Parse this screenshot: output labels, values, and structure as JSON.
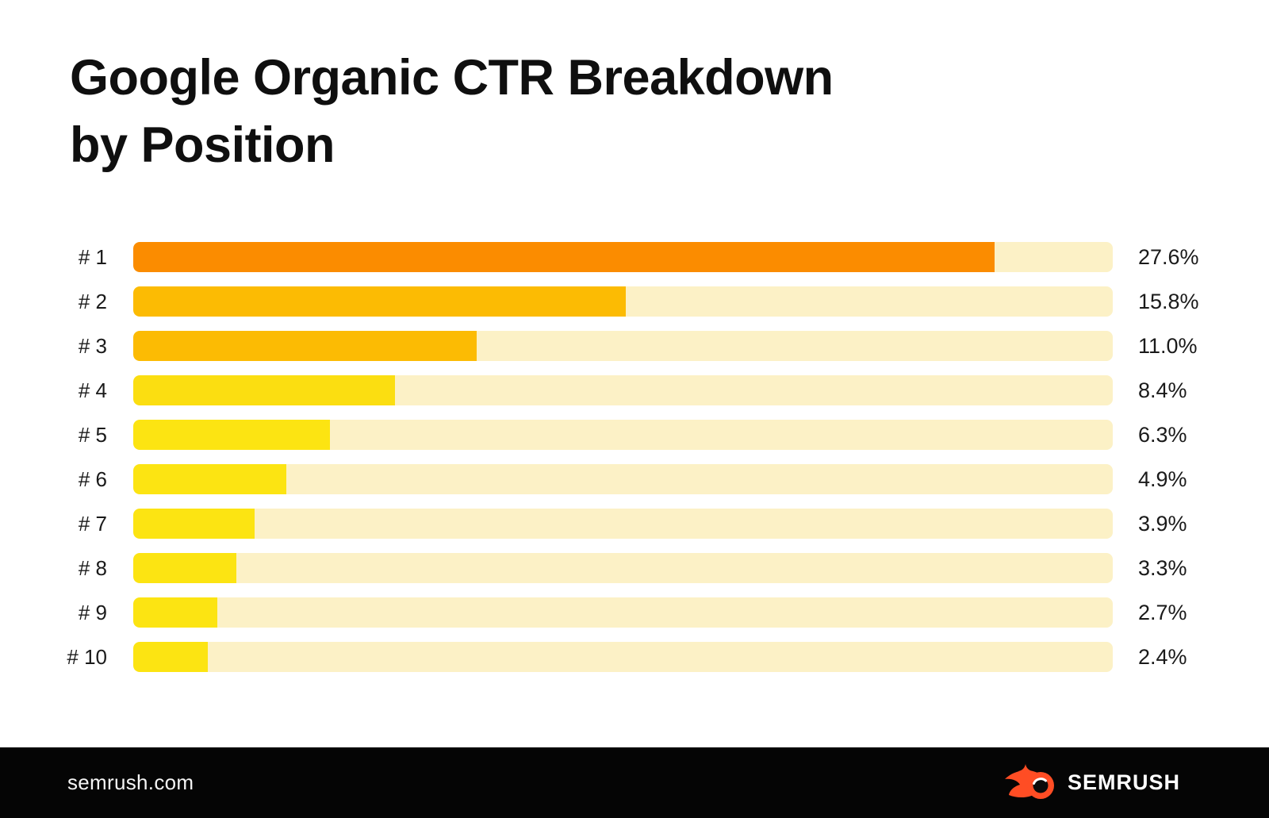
{
  "title": {
    "line1": "Google Organic CTR Breakdown",
    "line2": "by Position"
  },
  "chart_data": {
    "type": "bar",
    "orientation": "horizontal",
    "title": "Google Organic CTR Breakdown by Position",
    "categories": [
      "# 1",
      "# 2",
      "# 3",
      "# 4",
      "# 5",
      "# 6",
      "# 7",
      "# 8",
      "# 9",
      "# 10"
    ],
    "values": [
      27.6,
      15.8,
      11.0,
      8.4,
      6.3,
      4.9,
      3.9,
      3.3,
      2.7,
      2.4
    ],
    "value_labels": [
      "27.6%",
      "15.8%",
      "11.0%",
      "8.4%",
      "6.3%",
      "4.9%",
      "3.9%",
      "3.3%",
      "2.7%",
      "2.4%"
    ],
    "unit": "%",
    "xlim": [
      0,
      31.4
    ],
    "grid": false,
    "legend": false,
    "bar_colors": [
      "#FB8C00",
      "#FCBB03",
      "#FCBB03",
      "#FBDE11",
      "#FCE412",
      "#FCE412",
      "#FCE412",
      "#FCE412",
      "#FCE412",
      "#FCE412"
    ],
    "track_color": "#FCF1C6"
  },
  "footer": {
    "website": "semrush.com",
    "brand": "SEMRUSH",
    "background": "#050505",
    "logo_color": "#FF4D24"
  }
}
